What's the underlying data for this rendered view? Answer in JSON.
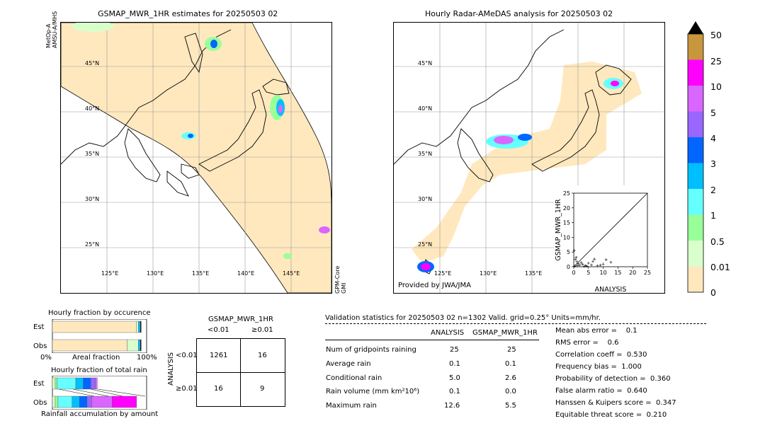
{
  "left_map": {
    "title": "GSMAP_MWR_1HR estimates for 20250503 02",
    "sat_label_top": "MetOp-A\nAMSU-A/MHS",
    "sat_label_top_1": "MetOp-A",
    "sat_label_top_2": "AMSU-A/MHS",
    "sat_label_bottom_1": "GPM-Core",
    "sat_label_bottom_2": "GMI",
    "lat_labels": [
      "45°N",
      "40°N",
      "35°N",
      "30°N",
      "25°N"
    ],
    "lon_labels": [
      "125°E",
      "130°E",
      "135°E",
      "140°E",
      "145°E"
    ]
  },
  "right_map": {
    "title": "Hourly Radar-AMeDAS analysis for 20250503 02",
    "credit": "Provided by JWA/JMA",
    "lat_labels": [
      "45°N",
      "40°N",
      "35°N",
      "30°N",
      "25°N"
    ],
    "lon_labels": [
      "125°E",
      "130°E",
      "135°E"
    ]
  },
  "colorbar": {
    "labels": [
      "50",
      "25",
      "10",
      "5",
      "4",
      "3",
      "2",
      "1",
      "0.5",
      "0.01",
      "0"
    ],
    "colors": [
      "#c8963c",
      "#ff00ff",
      "#d966ff",
      "#9966ff",
      "#0066ff",
      "#00bfff",
      "#66ffff",
      "#99ff99",
      "#d9ffcc",
      "#ffe8be"
    ]
  },
  "chart_data": [
    {
      "type": "scatter",
      "title": "",
      "xlabel": "ANALYSIS",
      "ylabel": "GSMAP_MWR_1HR",
      "xlim": [
        0,
        25
      ],
      "ylim": [
        0,
        25
      ],
      "xticks": [
        "0",
        "5",
        "10",
        "15",
        "20",
        "25"
      ],
      "yticks": [
        "0",
        "5",
        "10",
        "15",
        "20",
        "25"
      ],
      "diagonal": true,
      "points": [
        [
          0.2,
          5.5
        ],
        [
          0.5,
          2.5
        ],
        [
          1,
          1.8
        ],
        [
          1.5,
          1
        ],
        [
          2,
          0.5
        ],
        [
          3,
          0.8
        ],
        [
          4,
          0.4
        ],
        [
          5,
          1.2
        ],
        [
          6,
          0.6
        ],
        [
          7,
          2.6
        ],
        [
          8,
          0.3
        ],
        [
          9,
          0.5
        ],
        [
          10,
          0.9
        ],
        [
          11,
          2.4
        ],
        [
          12.6,
          1.5
        ],
        [
          0.8,
          3.2
        ],
        [
          2.5,
          1.4
        ],
        [
          4.5,
          0.2
        ],
        [
          6.5,
          1.8
        ],
        [
          3.5,
          0.1
        ],
        [
          0.3,
          0.2
        ],
        [
          1.2,
          0.4
        ]
      ]
    },
    {
      "type": "bar",
      "title": "Hourly fraction by occurence",
      "categories": [
        "Est",
        "Obs"
      ],
      "xlabel_left": "0%",
      "xlabel_mid": "Areal fraction",
      "xlabel_right": "100%",
      "series": [
        {
          "values": [
            0.9,
            0.8
          ]
        },
        {
          "values": [
            0.02,
            0.12
          ]
        },
        {
          "values": [
            0.02,
            0.02
          ]
        },
        {
          "values": [
            0.01,
            0.01
          ]
        }
      ]
    },
    {
      "type": "bar",
      "title": "Hourly fraction of total rain",
      "categories": [
        "Est",
        "Obs"
      ],
      "xlabel_mid": "Rainfall accumulation by amount",
      "series": [
        {
          "values": [
            0.1,
            0.14
          ]
        }
      ]
    }
  ],
  "contingency": {
    "title": "GSMAP_MWR_1HR",
    "col_lt": "<0.01",
    "col_ge": "≥0.01",
    "row_axis": "ANALYSIS",
    "row_lt": "<0.01",
    "row_ge": "≥0.01",
    "cells": [
      "1261",
      "16",
      "16",
      "9"
    ]
  },
  "validation": {
    "header": "Validation statistics for 20250503 02  n=1302 Valid. grid=0.25° Units=mm/hr.",
    "col1": "ANALYSIS",
    "col2": "GSMAP_MWR_1HR",
    "rows": [
      {
        "label": "Num of gridpoints raining",
        "a": "25",
        "b": "25"
      },
      {
        "label": "Average rain",
        "a": "0.1",
        "b": "0.1"
      },
      {
        "label": "Conditional rain",
        "a": "5.0",
        "b": "2.6"
      },
      {
        "label": "Rain volume (mm km²10⁶)",
        "a": "0.1",
        "b": "0.0"
      },
      {
        "label": "Maximum rain",
        "a": "12.6",
        "b": "5.5"
      }
    ],
    "scores": [
      "Mean abs error =    0.1",
      "RMS error =    0.6",
      "Correlation coeff =  0.530",
      "Frequency bias =  1.000",
      "Probability of detection =  0.360",
      "False alarm ratio =  0.640",
      "Hanssen & Kuipers score =  0.347",
      "Equitable threat score =  0.210"
    ]
  }
}
